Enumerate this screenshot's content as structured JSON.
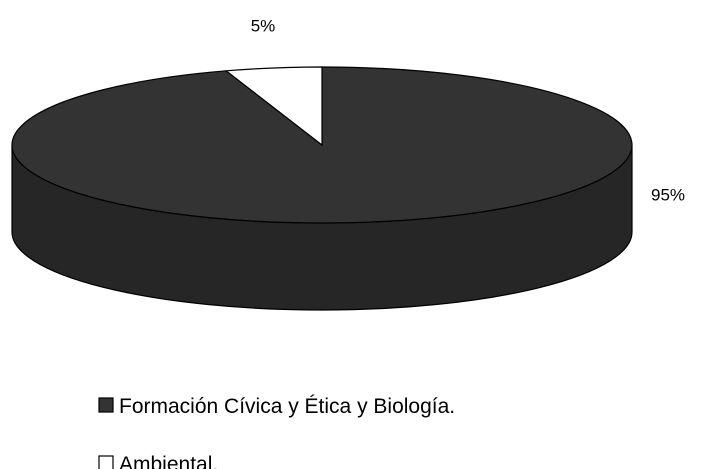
{
  "chart_data": {
    "type": "pie",
    "categories": [
      "Formación Cívica y Ética y Biología.",
      "Ambiental."
    ],
    "values": [
      95,
      5
    ],
    "value_labels": [
      "95%",
      "5%"
    ],
    "colors": [
      "#333333",
      "#ffffff"
    ],
    "legend": "bottom"
  }
}
